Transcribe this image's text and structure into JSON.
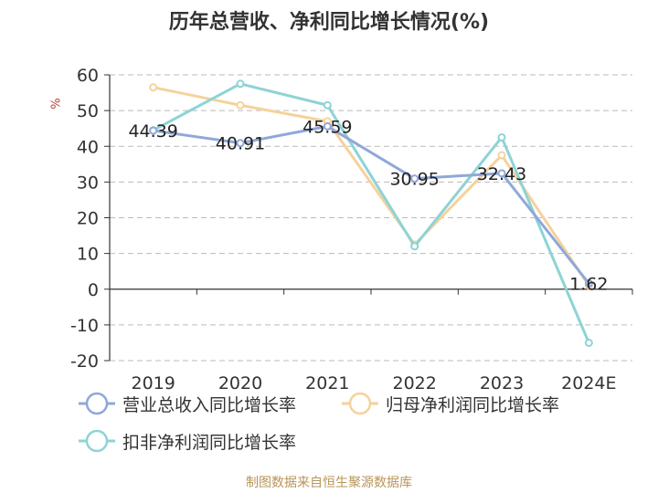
{
  "title": "历年总营收、净利同比增长情况(%)",
  "unit_label": "%",
  "source": "制图数据来自恒生聚源数据库",
  "chart_data": {
    "type": "line",
    "categories": [
      "2019",
      "2020",
      "2021",
      "2022",
      "2023",
      "2024E"
    ],
    "ylim": [
      -20,
      60
    ],
    "yticks": [
      60,
      50,
      40,
      30,
      20,
      10,
      0,
      -10,
      -20
    ],
    "grid": true,
    "legend_position": "bottom",
    "series": [
      {
        "name": "营业总收入同比增长率",
        "color": "#8fa8d8",
        "values": [
          44.39,
          40.91,
          45.59,
          30.95,
          32.43,
          1.62
        ],
        "labels": [
          "44.39",
          "40.91",
          "45.59",
          "30.95",
          "32.43",
          "1.62"
        ]
      },
      {
        "name": "归母净利润同比增长率",
        "color": "#f5d29b",
        "values": [
          56.5,
          51.5,
          47.0,
          12.5,
          37.5,
          1.0
        ],
        "labels": []
      },
      {
        "name": "扣非净利润同比增长率",
        "color": "#8ed3d6",
        "values": [
          44.5,
          57.5,
          51.5,
          12.0,
          42.5,
          -15.0
        ],
        "labels": []
      }
    ]
  }
}
